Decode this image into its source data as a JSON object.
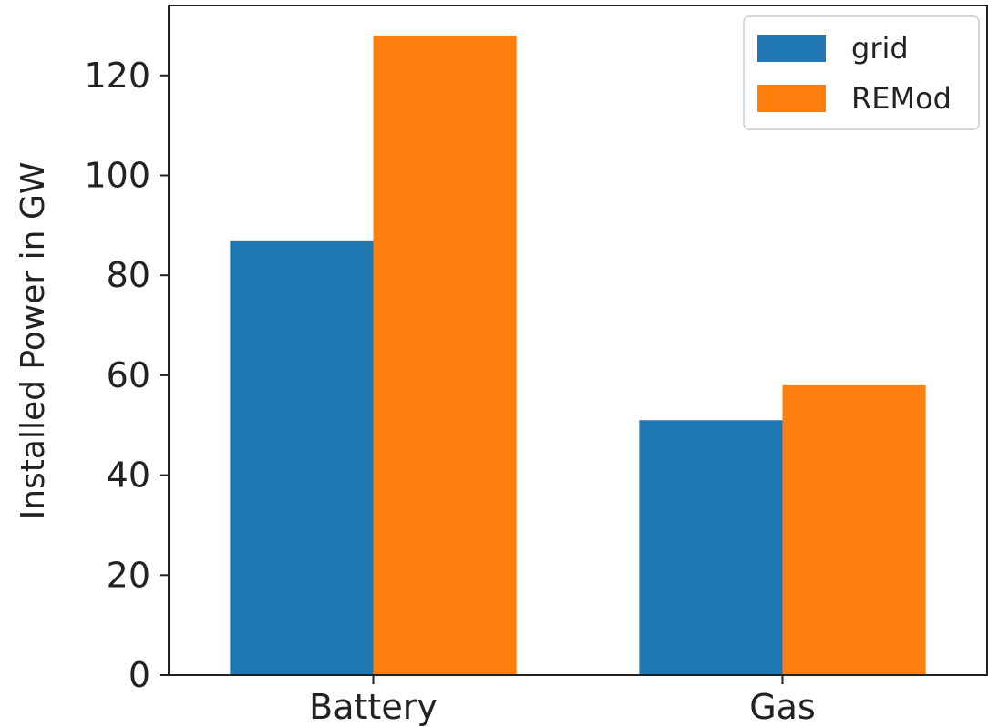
{
  "chart_data": {
    "type": "bar",
    "title": "",
    "xlabel": "",
    "ylabel": "Installed Power in GW",
    "categories": [
      "Battery",
      "Gas"
    ],
    "series": [
      {
        "name": "grid",
        "values": [
          87,
          51
        ],
        "color": "#1f77b4"
      },
      {
        "name": "REMod",
        "values": [
          128,
          58
        ],
        "color": "#ff7f0e"
      }
    ],
    "ylim": [
      0,
      134
    ],
    "yticks": [
      0,
      20,
      40,
      60,
      80,
      100,
      120
    ],
    "grid": false,
    "legend_position": "top-right"
  }
}
